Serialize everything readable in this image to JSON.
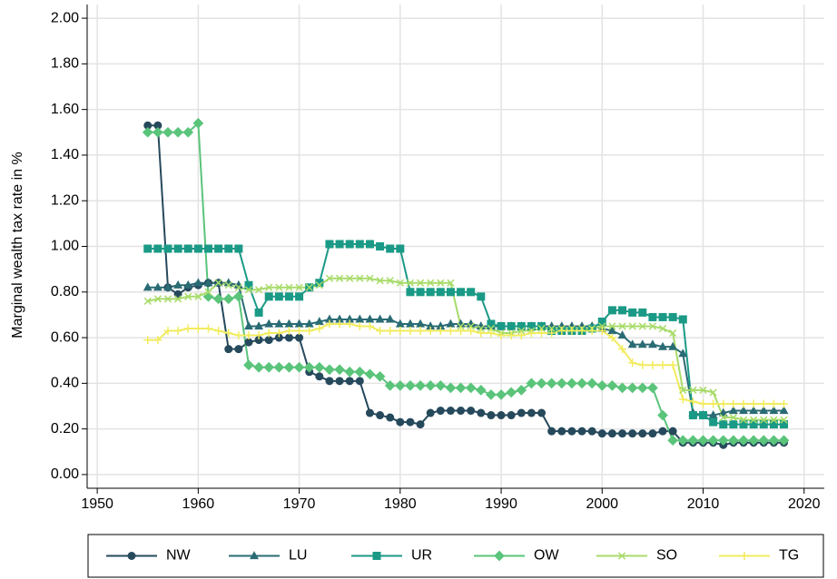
{
  "chart_data": {
    "type": "line",
    "y_label": "Marginal wealth tax rate in %",
    "x": [
      1955,
      1956,
      1957,
      1958,
      1959,
      1960,
      1961,
      1962,
      1963,
      1964,
      1965,
      1966,
      1967,
      1968,
      1969,
      1970,
      1971,
      1972,
      1973,
      1974,
      1975,
      1976,
      1977,
      1978,
      1979,
      1980,
      1981,
      1982,
      1983,
      1984,
      1985,
      1986,
      1987,
      1988,
      1989,
      1990,
      1991,
      1992,
      1993,
      1994,
      1995,
      1996,
      1997,
      1998,
      1999,
      2000,
      2001,
      2002,
      2003,
      2004,
      2005,
      2006,
      2007,
      2008,
      2009,
      2010,
      2011,
      2012,
      2013,
      2014,
      2015,
      2016,
      2017,
      2018
    ],
    "series": [
      {
        "name": "NW",
        "color": "#26495c",
        "marker": "circle",
        "values": [
          1.53,
          1.53,
          0.82,
          0.79,
          0.82,
          0.83,
          0.84,
          0.84,
          0.55,
          0.55,
          0.58,
          0.59,
          0.59,
          0.6,
          0.6,
          0.6,
          0.45,
          0.43,
          0.41,
          0.41,
          0.41,
          0.41,
          0.27,
          0.26,
          0.25,
          0.23,
          0.23,
          0.22,
          0.27,
          0.28,
          0.28,
          0.28,
          0.28,
          0.27,
          0.26,
          0.26,
          0.26,
          0.27,
          0.27,
          0.27,
          0.19,
          0.19,
          0.19,
          0.19,
          0.19,
          0.18,
          0.18,
          0.18,
          0.18,
          0.18,
          0.18,
          0.19,
          0.19,
          0.14,
          0.14,
          0.14,
          0.14,
          0.13,
          0.14,
          0.14,
          0.14,
          0.14,
          0.14,
          0.14
        ]
      },
      {
        "name": "LU",
        "color": "#2a6b74",
        "marker": "triangle",
        "values": [
          0.82,
          0.82,
          0.82,
          0.83,
          0.83,
          0.84,
          0.84,
          0.84,
          0.84,
          0.83,
          0.65,
          0.65,
          0.66,
          0.66,
          0.66,
          0.66,
          0.66,
          0.67,
          0.68,
          0.68,
          0.68,
          0.68,
          0.68,
          0.68,
          0.68,
          0.66,
          0.66,
          0.66,
          0.65,
          0.65,
          0.66,
          0.66,
          0.66,
          0.65,
          0.65,
          0.65,
          0.65,
          0.65,
          0.65,
          0.65,
          0.65,
          0.65,
          0.65,
          0.65,
          0.65,
          0.64,
          0.63,
          0.61,
          0.57,
          0.57,
          0.57,
          0.56,
          0.56,
          0.53,
          0.27,
          0.26,
          0.26,
          0.27,
          0.28,
          0.28,
          0.28,
          0.28,
          0.28,
          0.28
        ]
      },
      {
        "name": "UR",
        "color": "#1a9a86",
        "marker": "square",
        "values": [
          0.99,
          0.99,
          0.99,
          0.99,
          0.99,
          0.99,
          0.99,
          0.99,
          0.99,
          0.99,
          0.83,
          0.71,
          0.78,
          0.78,
          0.78,
          0.78,
          0.82,
          0.84,
          1.01,
          1.01,
          1.01,
          1.01,
          1.01,
          1.0,
          0.99,
          0.99,
          0.8,
          0.8,
          0.8,
          0.8,
          0.8,
          0.8,
          0.8,
          0.78,
          0.66,
          0.65,
          0.65,
          0.65,
          0.65,
          0.65,
          0.63,
          0.63,
          0.63,
          0.63,
          0.64,
          0.67,
          0.72,
          0.72,
          0.71,
          0.71,
          0.69,
          0.69,
          0.69,
          0.68,
          0.26,
          0.26,
          0.23,
          0.22,
          0.22,
          0.22,
          0.22,
          0.22,
          0.22,
          0.22
        ]
      },
      {
        "name": "OW",
        "color": "#5ac47a",
        "marker": "diamond",
        "values": [
          1.5,
          1.5,
          1.5,
          1.5,
          1.5,
          1.54,
          0.78,
          0.77,
          0.77,
          0.78,
          0.48,
          0.47,
          0.47,
          0.47,
          0.47,
          0.47,
          0.47,
          0.47,
          0.46,
          0.46,
          0.45,
          0.45,
          0.44,
          0.43,
          0.39,
          0.39,
          0.39,
          0.39,
          0.39,
          0.39,
          0.38,
          0.38,
          0.38,
          0.37,
          0.35,
          0.35,
          0.36,
          0.37,
          0.4,
          0.4,
          0.4,
          0.4,
          0.4,
          0.4,
          0.4,
          0.39,
          0.39,
          0.38,
          0.38,
          0.38,
          0.38,
          0.26,
          0.15,
          0.15,
          0.15,
          0.15,
          0.15,
          0.15,
          0.15,
          0.15,
          0.15,
          0.15,
          0.15,
          0.15
        ]
      },
      {
        "name": "SO",
        "color": "#a8db6a",
        "marker": "x",
        "values": [
          0.76,
          0.77,
          0.77,
          0.77,
          0.78,
          0.78,
          0.8,
          0.84,
          0.83,
          0.82,
          0.81,
          0.81,
          0.82,
          0.82,
          0.82,
          0.82,
          0.82,
          0.83,
          0.86,
          0.86,
          0.86,
          0.86,
          0.86,
          0.85,
          0.85,
          0.84,
          0.84,
          0.84,
          0.84,
          0.84,
          0.84,
          0.65,
          0.65,
          0.64,
          0.64,
          0.62,
          0.62,
          0.63,
          0.63,
          0.64,
          0.64,
          0.64,
          0.64,
          0.64,
          0.64,
          0.65,
          0.65,
          0.65,
          0.65,
          0.65,
          0.65,
          0.64,
          0.62,
          0.37,
          0.37,
          0.37,
          0.36,
          0.25,
          0.25,
          0.24,
          0.24,
          0.24,
          0.24,
          0.24
        ]
      },
      {
        "name": "TG",
        "color": "#f2ec5e",
        "marker": "plus",
        "values": [
          0.59,
          0.59,
          0.63,
          0.63,
          0.64,
          0.64,
          0.64,
          0.63,
          0.62,
          0.61,
          0.61,
          0.61,
          0.62,
          0.62,
          0.63,
          0.63,
          0.63,
          0.64,
          0.66,
          0.66,
          0.66,
          0.65,
          0.65,
          0.63,
          0.63,
          0.63,
          0.63,
          0.63,
          0.63,
          0.63,
          0.63,
          0.63,
          0.63,
          0.62,
          0.62,
          0.61,
          0.61,
          0.61,
          0.62,
          0.62,
          0.62,
          0.63,
          0.63,
          0.63,
          0.63,
          0.63,
          0.6,
          0.55,
          0.49,
          0.48,
          0.48,
          0.48,
          0.48,
          0.33,
          0.32,
          0.31,
          0.31,
          0.31,
          0.31,
          0.31,
          0.31,
          0.31,
          0.31,
          0.31
        ]
      }
    ],
    "xlim": [
      1949,
      2022
    ],
    "xticks": [
      1950,
      1960,
      1970,
      1980,
      1990,
      2000,
      2010,
      2020
    ],
    "ylim": [
      -0.06,
      2.06
    ],
    "yticks": [
      {
        "value": 0,
        "label": "0.00"
      },
      {
        "value": 0.2,
        "label": "0.20"
      },
      {
        "value": 0.4,
        "label": "0.40"
      },
      {
        "value": 0.6,
        "label": "0.60"
      },
      {
        "value": 0.8,
        "label": "0.80"
      },
      {
        "value": 1,
        "label": "1.00"
      },
      {
        "value": 1.2,
        "label": "1.20"
      },
      {
        "value": 1.4,
        "label": "1.40"
      },
      {
        "value": 1.6,
        "label": "1.60"
      },
      {
        "value": 1.8,
        "label": "1.80"
      },
      {
        "value": 2,
        "label": "2.00"
      }
    ],
    "grid": true,
    "legend": "bottom"
  }
}
